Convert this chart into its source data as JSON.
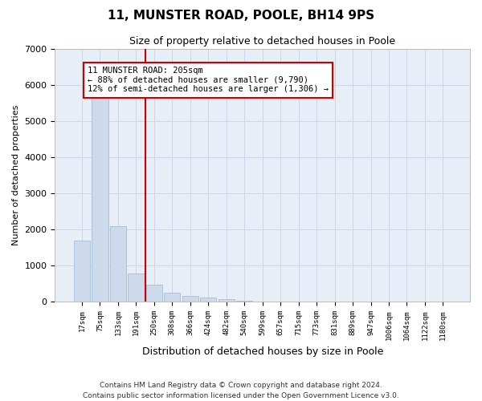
{
  "title": "11, MUNSTER ROAD, POOLE, BH14 9PS",
  "subtitle": "Size of property relative to detached houses in Poole",
  "xlabel": "Distribution of detached houses by size in Poole",
  "ylabel": "Number of detached properties",
  "footer_line1": "Contains HM Land Registry data © Crown copyright and database right 2024.",
  "footer_line2": "Contains public sector information licensed under the Open Government Licence v3.0.",
  "bar_labels": [
    "17sqm",
    "75sqm",
    "133sqm",
    "191sqm",
    "250sqm",
    "308sqm",
    "366sqm",
    "424sqm",
    "482sqm",
    "540sqm",
    "599sqm",
    "657sqm",
    "715sqm",
    "773sqm",
    "831sqm",
    "889sqm",
    "947sqm",
    "1006sqm",
    "1064sqm",
    "1122sqm",
    "1180sqm"
  ],
  "bar_values": [
    1700,
    5750,
    2100,
    780,
    480,
    260,
    155,
    110,
    65,
    28,
    10,
    4,
    2,
    0,
    0,
    0,
    0,
    0,
    0,
    0,
    0
  ],
  "bar_color": "#ccdaeb",
  "bar_edgecolor": "#a8c4dc",
  "vline_color": "#cc0000",
  "annotation_text": "11 MUNSTER ROAD: 205sqm\n← 88% of detached houses are smaller (9,790)\n12% of semi-detached houses are larger (1,306) →",
  "ylim": [
    0,
    7000
  ],
  "grid_color": "#ccd6e8",
  "plot_background": "#e8eef6"
}
